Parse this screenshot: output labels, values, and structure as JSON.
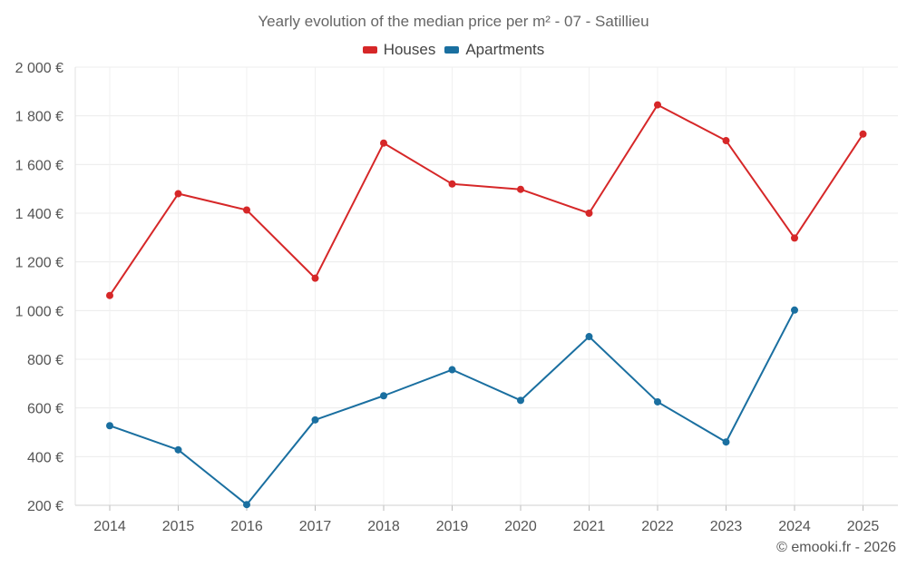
{
  "chart_data": {
    "type": "line",
    "title": "Yearly evolution of the median price per m² - 07 - Satillieu",
    "categories": [
      "2014",
      "2015",
      "2016",
      "2017",
      "2018",
      "2019",
      "2020",
      "2021",
      "2022",
      "2023",
      "2024",
      "2025"
    ],
    "series": [
      {
        "name": "Houses",
        "color": "#d62728",
        "values": [
          1062,
          1480,
          1413,
          1133,
          1688,
          1520,
          1498,
          1400,
          1845,
          1698,
          1298,
          1725
        ]
      },
      {
        "name": "Apartments",
        "color": "#1a6fa0",
        "values": [
          527,
          428,
          203,
          551,
          650,
          757,
          631,
          893,
          625,
          460,
          1002,
          null
        ]
      }
    ],
    "ylim": [
      200,
      2000
    ],
    "yticks": [
      {
        "value": 200,
        "label": "200 €"
      },
      {
        "value": 400,
        "label": "400 €"
      },
      {
        "value": 600,
        "label": "600 €"
      },
      {
        "value": 800,
        "label": "800 €"
      },
      {
        "value": 1000,
        "label": "1 000 €"
      },
      {
        "value": 1200,
        "label": "1 200 €"
      },
      {
        "value": 1400,
        "label": "1 400 €"
      },
      {
        "value": 1600,
        "label": "1 600 €"
      },
      {
        "value": 1800,
        "label": "1 800 €"
      },
      {
        "value": 2000,
        "label": "2 000 €"
      }
    ],
    "xlabel": "",
    "ylabel": "",
    "grid": true,
    "legend_position": "top-center"
  },
  "credit": "© emooki.fr - 2026"
}
